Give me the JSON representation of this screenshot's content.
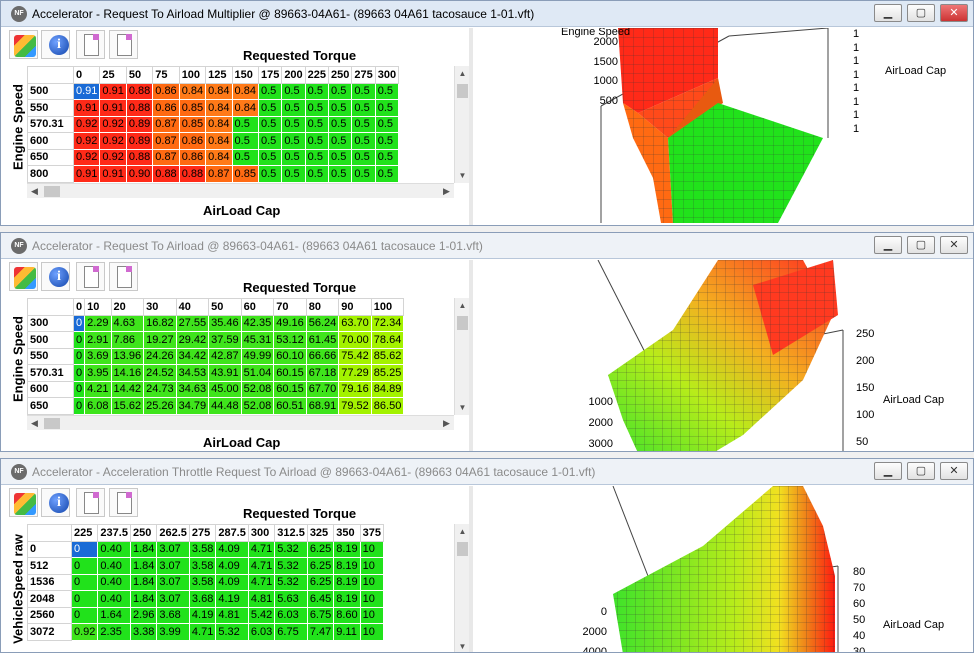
{
  "win1": {
    "title": "Accelerator - Request To Airload Multiplier @ 89663-04A61- (89663 04A61 tacosauce 1-01.vft)",
    "active": true,
    "table_header": "Requested Torque",
    "y_label": "Engine Speed",
    "x_label": "AirLoad Cap",
    "cols": [
      "0",
      "25",
      "50",
      "75",
      "100",
      "125",
      "150",
      "175",
      "200",
      "225",
      "250",
      "275",
      "300"
    ],
    "rows": [
      {
        "label": "500",
        "values": [
          "0.91",
          "0.91",
          "0.88",
          "0.86",
          "0.84",
          "0.84",
          "0.84",
          "0.5",
          "0.5",
          "0.5",
          "0.5",
          "0.5",
          "0.5"
        ]
      },
      {
        "label": "550",
        "values": [
          "0.91",
          "0.91",
          "0.88",
          "0.86",
          "0.85",
          "0.84",
          "0.84",
          "0.5",
          "0.5",
          "0.5",
          "0.5",
          "0.5",
          "0.5"
        ]
      },
      {
        "label": "570.31",
        "values": [
          "0.92",
          "0.92",
          "0.89",
          "0.87",
          "0.85",
          "0.84",
          "0.5",
          "0.5",
          "0.5",
          "0.5",
          "0.5",
          "0.5",
          "0.5"
        ]
      },
      {
        "label": "600",
        "values": [
          "0.92",
          "0.92",
          "0.89",
          "0.87",
          "0.86",
          "0.84",
          "0.5",
          "0.5",
          "0.5",
          "0.5",
          "0.5",
          "0.5",
          "0.5"
        ]
      },
      {
        "label": "650",
        "values": [
          "0.92",
          "0.92",
          "0.88",
          "0.87",
          "0.86",
          "0.84",
          "0.5",
          "0.5",
          "0.5",
          "0.5",
          "0.5",
          "0.5",
          "0.5"
        ]
      },
      {
        "label": "800",
        "values": [
          "0.91",
          "0.91",
          "0.90",
          "0.88",
          "0.88",
          "0.87",
          "0.85",
          "0.5",
          "0.5",
          "0.5",
          "0.5",
          "0.5",
          "0.5"
        ]
      }
    ],
    "plot_axis_title": "Engine Speed",
    "plot_y_ticks": [
      "2000",
      "1500",
      "1000",
      "500"
    ],
    "plot_z_ticks": [
      "1",
      "1",
      "1",
      "1",
      "1",
      "1",
      "1",
      "1"
    ],
    "plot_label": "AirLoad Cap"
  },
  "win2": {
    "title": "Accelerator - Request To Airload @ 89663-04A61- (89663 04A61 tacosauce 1-01.vft)",
    "active": false,
    "table_header": "Requested Torque",
    "y_label": "Engine Speed",
    "x_label": "AirLoad Cap",
    "cols": [
      "0",
      "10",
      "20",
      "30",
      "40",
      "50",
      "60",
      "70",
      "80",
      "90",
      "100"
    ],
    "rows": [
      {
        "label": "300",
        "values": [
          "0",
          "2.29",
          "4.63",
          "16.82",
          "27.55",
          "35.46",
          "42.35",
          "49.16",
          "56.24",
          "63.70",
          "72.34"
        ]
      },
      {
        "label": "500",
        "values": [
          "0",
          "2.91",
          "7.86",
          "19.27",
          "29.42",
          "37.59",
          "45.31",
          "53.12",
          "61.45",
          "70.00",
          "78.64"
        ]
      },
      {
        "label": "550",
        "values": [
          "0",
          "3.69",
          "13.96",
          "24.26",
          "34.42",
          "42.87",
          "49.99",
          "60.10",
          "66.66",
          "75.42",
          "85.62"
        ]
      },
      {
        "label": "570.31",
        "values": [
          "0",
          "3.95",
          "14.16",
          "24.52",
          "34.53",
          "43.91",
          "51.04",
          "60.15",
          "67.18",
          "77.29",
          "85.25"
        ]
      },
      {
        "label": "600",
        "values": [
          "0",
          "4.21",
          "14.42",
          "24.73",
          "34.63",
          "45.00",
          "52.08",
          "60.15",
          "67.70",
          "79.16",
          "84.89"
        ]
      },
      {
        "label": "650",
        "values": [
          "0",
          "6.08",
          "15.62",
          "25.26",
          "34.79",
          "44.48",
          "52.08",
          "60.51",
          "68.91",
          "79.52",
          "86.50"
        ]
      }
    ],
    "plot_y_ticks": [
      "1000",
      "2000",
      "3000"
    ],
    "plot_z_ticks": [
      "250",
      "200",
      "150",
      "100",
      "50"
    ],
    "plot_label": "AirLoad Cap"
  },
  "win3": {
    "title": "Accelerator - Acceleration Throttle Request To Airload @ 89663-04A61- (89663 04A61 tacosauce 1-01.vft)",
    "active": false,
    "table_header": "Requested Torque",
    "y_label": "VehicleSpeed raw",
    "x_label": "",
    "cols": [
      "225",
      "237.5",
      "250",
      "262.5",
      "275",
      "287.5",
      "300",
      "312.5",
      "325",
      "350",
      "375"
    ],
    "rows": [
      {
        "label": "0",
        "values": [
          "0",
          "0.40",
          "1.84",
          "3.07",
          "3.58",
          "4.09",
          "4.71",
          "5.32",
          "6.25",
          "8.19",
          "10"
        ]
      },
      {
        "label": "512",
        "values": [
          "0",
          "0.40",
          "1.84",
          "3.07",
          "3.58",
          "4.09",
          "4.71",
          "5.32",
          "6.25",
          "8.19",
          "10"
        ]
      },
      {
        "label": "1536",
        "values": [
          "0",
          "0.40",
          "1.84",
          "3.07",
          "3.58",
          "4.09",
          "4.71",
          "5.32",
          "6.25",
          "8.19",
          "10"
        ]
      },
      {
        "label": "2048",
        "values": [
          "0",
          "0.40",
          "1.84",
          "3.07",
          "3.68",
          "4.19",
          "4.81",
          "5.63",
          "6.45",
          "8.19",
          "10"
        ]
      },
      {
        "label": "2560",
        "values": [
          "0",
          "1.64",
          "2.96",
          "3.68",
          "4.19",
          "4.81",
          "5.42",
          "6.03",
          "6.75",
          "8.60",
          "10"
        ]
      },
      {
        "label": "3072",
        "values": [
          "0.92",
          "2.35",
          "3.38",
          "3.99",
          "4.71",
          "5.32",
          "6.03",
          "6.75",
          "7.47",
          "9.11",
          "10"
        ]
      }
    ],
    "plot_y_ticks": [
      "0",
      "2000",
      "4000"
    ],
    "plot_z_ticks": [
      "80",
      "70",
      "60",
      "50",
      "40",
      "30"
    ],
    "plot_label": "AirLoad Cap"
  },
  "window_buttons": {
    "minimize": "▁",
    "maximize": "▢",
    "close": "✕"
  },
  "icons": [
    "palette-icon",
    "info-icon",
    "page-icon"
  ],
  "colors": {
    "red": "#ff2a18",
    "orange": "#ff6a12",
    "green": "#21e21b",
    "lime": "#a3f200",
    "selected": "#1a6bd6"
  }
}
